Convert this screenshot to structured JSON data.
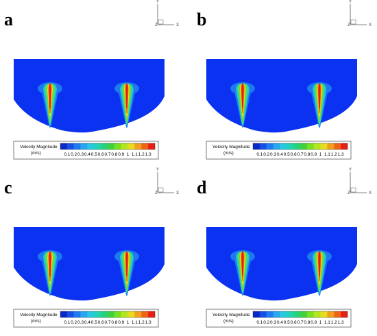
{
  "panels": [
    {
      "label": "a"
    },
    {
      "label": "b"
    },
    {
      "label": "c"
    },
    {
      "label": "d"
    }
  ],
  "axes": {
    "y": "Y",
    "z": "Z",
    "x": "X"
  },
  "legend": {
    "title": "Velocity Magnitude",
    "units": "(m/s)",
    "ticks": [
      "0.1",
      "0.2",
      "0.3",
      "0.4",
      "0.5",
      "0.6",
      "0.7",
      "0.8",
      "0.9",
      "1",
      "1.1",
      "1.2",
      "1.3"
    ],
    "colors": [
      "#0a28c8",
      "#1450e6",
      "#1e7cf0",
      "#28a6f0",
      "#24c8e0",
      "#20d2b4",
      "#24d278",
      "#40d23c",
      "#78e01e",
      "#b4e61e",
      "#e6dc1e",
      "#f0a01e",
      "#f06414",
      "#e61e14"
    ]
  },
  "colors": {
    "background": "#0a32f0",
    "jet_low": "#1ec8d2",
    "jet_mid": "#78dc28",
    "jet_high": "#e61e14"
  }
}
